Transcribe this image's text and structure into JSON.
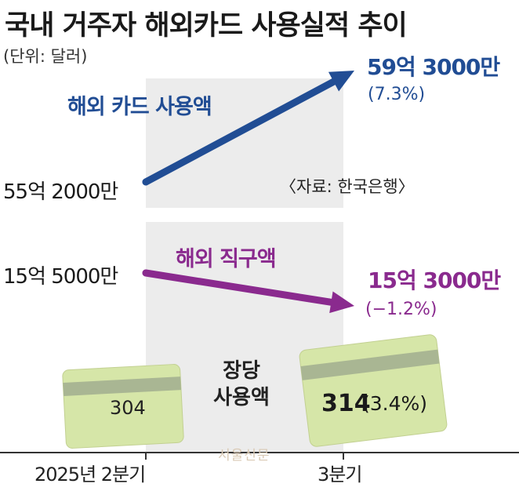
{
  "title": "국내 거주자 해외카드 사용실적 추이",
  "unit": "(단위: 달러)",
  "source": "〈자료: 한국은행〉",
  "watermark": "서울신문",
  "colors": {
    "card_series": "#214d94",
    "direct_purchase_series": "#8a2a8e",
    "card_fill": "#d6e6a8",
    "card_stripe": "#a9b693",
    "panel": "#ececec"
  },
  "chart_data": {
    "type": "line",
    "x": [
      "2025년 2분기",
      "3분기"
    ],
    "series": [
      {
        "name": "해외 카드 사용액",
        "value_labels": [
          "55억 2000만",
          "59억 3000만"
        ],
        "values": [
          5520000000,
          5930000000
        ],
        "change_label": "(7.3%)"
      },
      {
        "name": "해외 직구액",
        "value_labels": [
          "15억 5000만",
          "15억 3000만"
        ],
        "values": [
          1550000000,
          1530000000
        ],
        "change_label": "(−1.2%)"
      }
    ],
    "per_card": {
      "labels": [
        "장당",
        "사용액"
      ],
      "values": [
        304,
        314
      ],
      "change_label": "(3.4%)"
    },
    "grid": false,
    "legend": "none"
  }
}
